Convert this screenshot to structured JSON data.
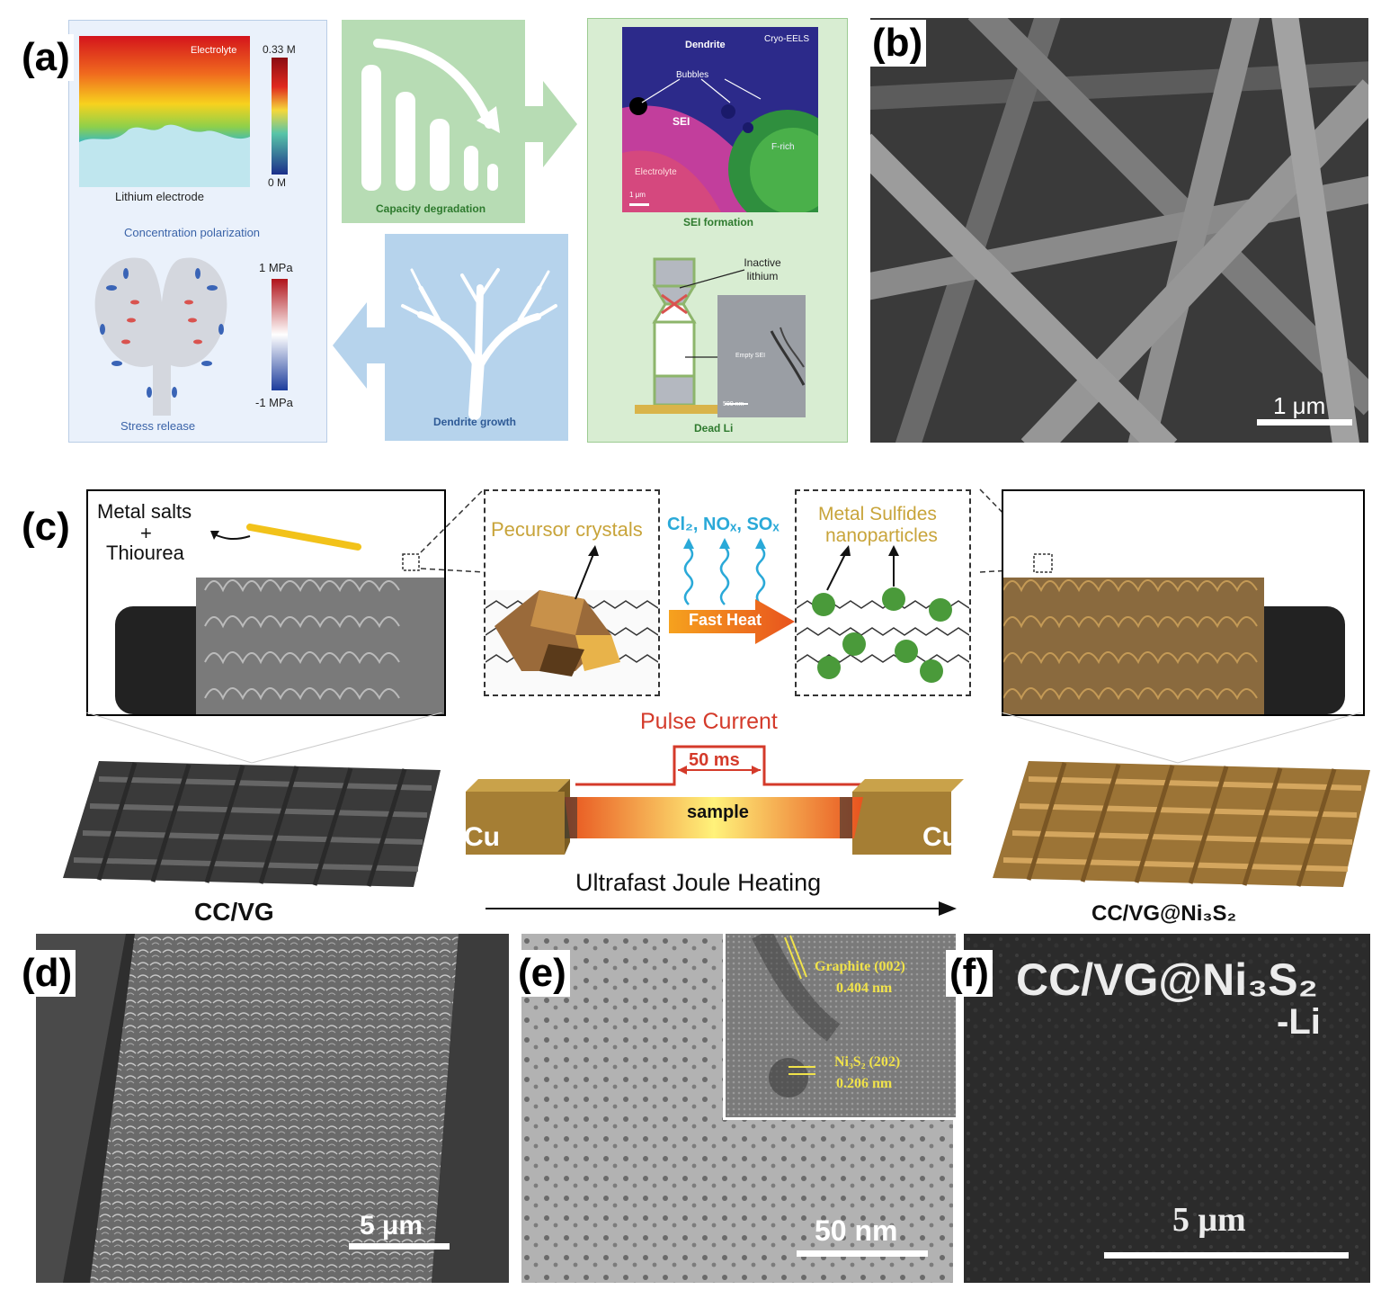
{
  "panels": {
    "a": {
      "label": "(a)",
      "lithium_electrode": "Lithium electrode",
      "electrolyte": "Electrolyte",
      "conc_max": "0.33 M",
      "conc_min": "0 M",
      "concentration_polarization": "Concentration polarization",
      "stress_max": "1 MPa",
      "stress_min": "-1 MPa",
      "stress_release": "Stress release",
      "capacity_degradation": "Capacity degradation",
      "dendrite_growth": "Dendrite growth",
      "dendrite": "Dendrite",
      "cryo_eels": "Cryo-EELS",
      "bubbles": "Bubbles",
      "sei": "SEI",
      "f_rich": "F-rich",
      "electrolyte2": "Electrolyte",
      "scale_1um": "1 μm",
      "sei_formation": "SEI formation",
      "inactive_lithium": "Inactive lithium",
      "empty_sei": "Empty SEI",
      "scale_500nm": "500 nm",
      "dead_li": "Dead Li"
    },
    "b": {
      "label": "(b)",
      "scale": "1 μm"
    },
    "c": {
      "label": "(c)",
      "metal_salts": "Metal salts",
      "plus": "+",
      "thiourea": "Thiourea",
      "precursor_crystals": "Pecursor crystals",
      "gases": "Cl₂, NOₓ, SOₓ",
      "fast_heat": "Fast Heat",
      "metal_sulfides_1": "Metal Sulfides",
      "metal_sulfides_2": "nanoparticles",
      "pulse_current": "Pulse Current",
      "pulse_width": "50 ms",
      "sample": "sample",
      "cu_left": "Cu",
      "cu_right": "Cu",
      "ultrafast": "Ultrafast Joule Heating",
      "cc_vg": "CC/VG",
      "cc_vg_ni3s2": "CC/VG@Ni₃S₂"
    },
    "d": {
      "label": "(d)",
      "scale": "5 μm"
    },
    "e": {
      "label": "(e)",
      "scale": "50 nm",
      "graphite": "Graphite (002)",
      "graphite_d": "0.404 nm",
      "ni3s2": "Ni₃S₂ (202)",
      "ni3s2_d": "0.206 nm"
    },
    "f": {
      "label": "(f)",
      "title_1": "CC/VG@Ni₃S₂",
      "title_2": "-Li",
      "scale": "5 μm"
    }
  },
  "colors": {
    "panel_a_left_bg": "#e8f0fb",
    "capacity_box": "#b7dcb4",
    "dendrite_box": "#b6d3ec",
    "sei_box": "#d7ecd0",
    "precursor_text": "#c8a43a",
    "pulse_red": "#d43a2a",
    "gas_blue": "#2aa9d8"
  }
}
